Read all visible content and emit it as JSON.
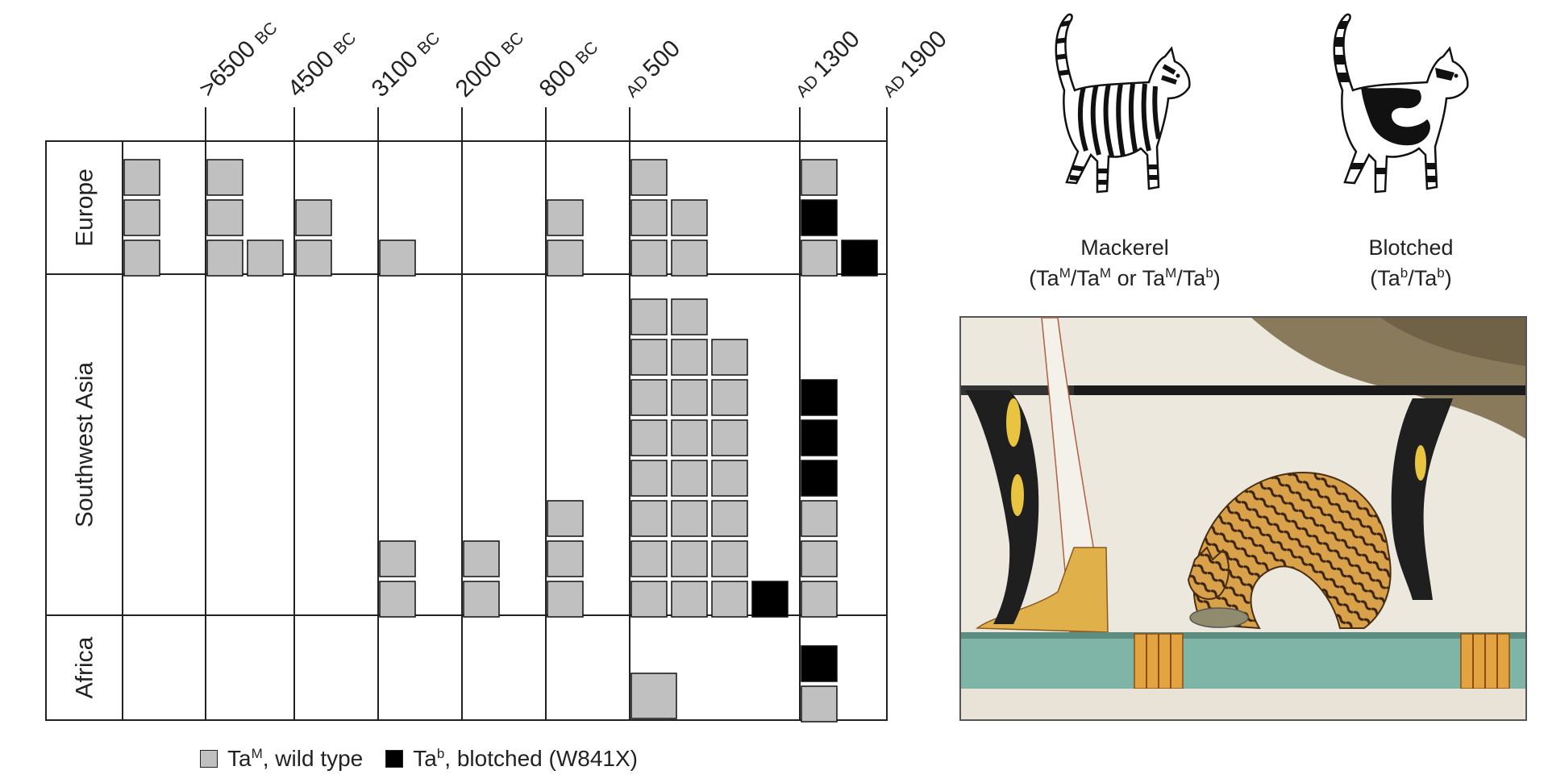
{
  "chart_data": {
    "type": "table",
    "periods": [
      ">6500 BC",
      "4500 BC",
      "3100 BC",
      "2000 BC",
      "800 BC",
      "AD 500",
      "AD 1300",
      "AD 1900"
    ],
    "period_labels": [
      {
        "main": ">6500",
        "era": "BC",
        "era_first": false
      },
      {
        "main": "4500",
        "era": "BC",
        "era_first": false
      },
      {
        "main": "3100",
        "era": "BC",
        "era_first": false
      },
      {
        "main": "2000",
        "era": "BC",
        "era_first": false
      },
      {
        "main": "800",
        "era": "BC",
        "era_first": false
      },
      {
        "main": "500",
        "era": "AD",
        "era_first": true
      },
      {
        "main": "1300",
        "era": "AD",
        "era_first": true
      },
      {
        "main": "1900",
        "era": "AD",
        "era_first": true
      }
    ],
    "regions": [
      "Europe",
      "Southwest Asia",
      "Africa"
    ],
    "columns": [
      {
        "Europe": [
          "M",
          "M",
          "M"
        ],
        "Southwest Asia": [],
        "Africa": []
      },
      {
        "Europe": [
          "M",
          "M",
          "M",
          "M"
        ],
        "Southwest Asia": [],
        "Africa": []
      },
      {
        "Europe": [
          "M",
          "M"
        ],
        "Southwest Asia": [],
        "Africa": []
      },
      {
        "Europe": [
          "M"
        ],
        "Southwest Asia": [
          "M",
          "M"
        ],
        "Africa": []
      },
      {
        "Europe": [],
        "Southwest Asia": [
          "M",
          "M"
        ],
        "Africa": []
      },
      {
        "Europe": [
          "M",
          "M"
        ],
        "Southwest Asia": [
          "M",
          "M",
          "M"
        ],
        "Africa": []
      },
      {
        "Europe": [
          "M",
          "M",
          "M",
          "M",
          "M"
        ],
        "Southwest Asia": [
          "M",
          "M",
          "M",
          "M",
          "M",
          "M",
          "M",
          "M",
          "M",
          "M",
          "M",
          "M",
          "M",
          "M",
          "M",
          "M",
          "M",
          "M",
          "M",
          "M",
          "b"
        ],
        "Africa": [
          "M"
        ]
      },
      {
        "Europe": [
          "M",
          "b",
          "M",
          "b"
        ],
        "Southwest Asia": [
          "M",
          "M",
          "M",
          "b",
          "b",
          "b"
        ],
        "Africa": [
          "M",
          "b"
        ]
      }
    ],
    "legend": [
      {
        "key": "M",
        "color": "#c0c0c0"
      },
      {
        "key": "b",
        "color": "#000000"
      }
    ]
  },
  "legend_items": [
    {
      "allele": "Ta",
      "sup": "M",
      "text": ", wild type",
      "color": "#c0c0c0"
    },
    {
      "allele": "Ta",
      "sup": "b",
      "text": ", blotched (W841X)",
      "color": "#000000"
    }
  ],
  "phenotypes": {
    "mackerel": {
      "name": "Mackerel",
      "genotype_parts": [
        "(Ta",
        "M",
        "/Ta",
        "M",
        " or Ta",
        "M",
        "/Ta",
        "b",
        ")"
      ]
    },
    "blotched": {
      "name": "Blotched",
      "genotype_parts": [
        "(Ta",
        "b",
        "/Ta",
        "b",
        ")"
      ]
    }
  },
  "colors": {
    "wild_type": "#c0c0c0",
    "blotched": "#000000",
    "grid": "#222222"
  },
  "icons": [
    "mackerel-cat-icon",
    "blotched-cat-icon",
    "tomb-painting-cat"
  ]
}
